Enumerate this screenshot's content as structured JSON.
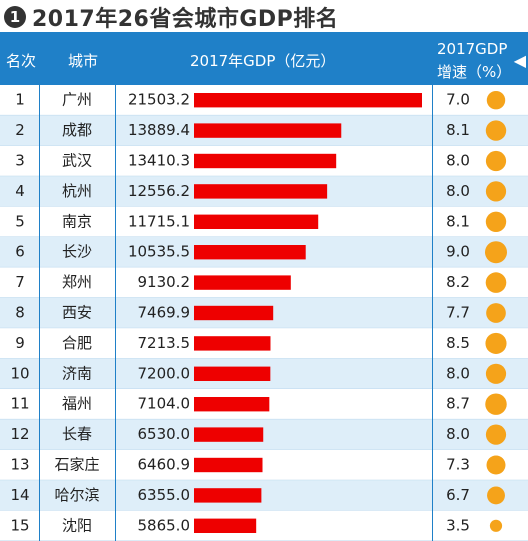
{
  "title": {
    "number": "1",
    "text": "2017年26省会城市GDP排名"
  },
  "header": {
    "rank": "名次",
    "city": "城市",
    "gdp": "2017年GDP（亿元）",
    "growth_line1": "2017GDP",
    "growth_line2": "增速（%）",
    "arrow": "◀"
  },
  "colors": {
    "header_bg": "#1f80c8",
    "bar": "#ee0000",
    "dot": "#f5a31a",
    "row_alt": "#deeef9"
  },
  "chart_data": {
    "type": "table",
    "title": "2017年26省会城市GDP排名",
    "columns": [
      "名次",
      "城市",
      "2017年GDP（亿元）",
      "2017GDP增速（%）"
    ],
    "rows": [
      {
        "rank": "1",
        "city": "广州",
        "gdp": "21503.2",
        "growth": "7.0"
      },
      {
        "rank": "2",
        "city": "成都",
        "gdp": "13889.4",
        "growth": "8.1"
      },
      {
        "rank": "3",
        "city": "武汉",
        "gdp": "13410.3",
        "growth": "8.0"
      },
      {
        "rank": "4",
        "city": "杭州",
        "gdp": "12556.2",
        "growth": "8.0"
      },
      {
        "rank": "5",
        "city": "南京",
        "gdp": "11715.1",
        "growth": "8.1"
      },
      {
        "rank": "6",
        "city": "长沙",
        "gdp": "10535.5",
        "growth": "9.0"
      },
      {
        "rank": "7",
        "city": "郑州",
        "gdp": "9130.2",
        "growth": "8.2"
      },
      {
        "rank": "8",
        "city": "西安",
        "gdp": "7469.9",
        "growth": "7.7"
      },
      {
        "rank": "9",
        "city": "合肥",
        "gdp": "7213.5",
        "growth": "8.5"
      },
      {
        "rank": "10",
        "city": "济南",
        "gdp": "7200.0",
        "growth": "8.0"
      },
      {
        "rank": "11",
        "city": "福州",
        "gdp": "7104.0",
        "growth": "8.7"
      },
      {
        "rank": "12",
        "city": "长春",
        "gdp": "6530.0",
        "growth": "8.0"
      },
      {
        "rank": "13",
        "city": "石家庄",
        "gdp": "6460.9",
        "growth": "7.3"
      },
      {
        "rank": "14",
        "city": "哈尔滨",
        "gdp": "6355.0",
        "growth": "6.7"
      },
      {
        "rank": "15",
        "city": "沈阳",
        "gdp": "5865.0",
        "growth": "3.5"
      }
    ]
  }
}
